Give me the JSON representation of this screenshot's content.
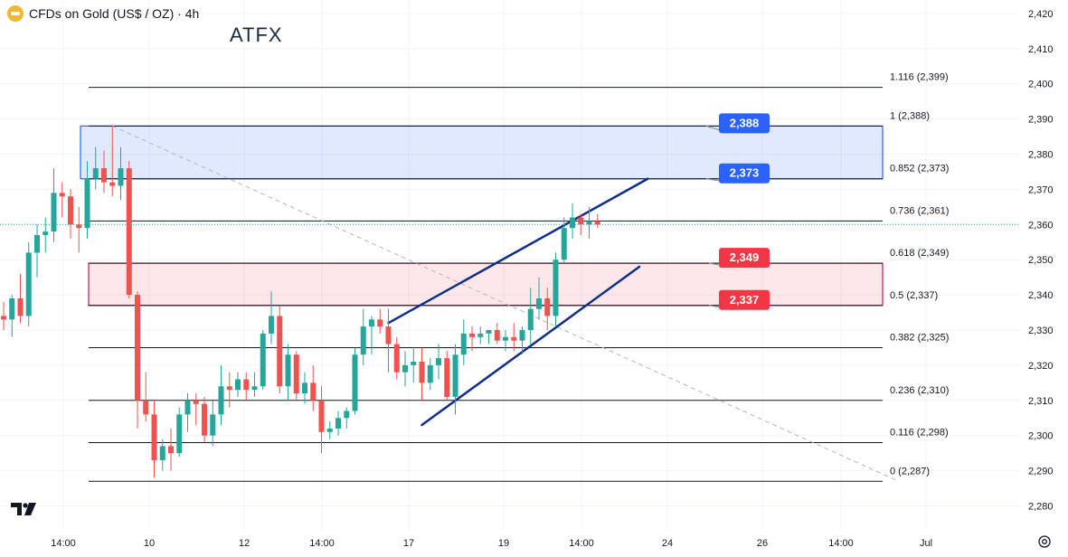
{
  "header": {
    "symbol_title": "CFDs on Gold (US$ / OZ) · 4h",
    "brand": "ATFX",
    "coin_icon": "gold-coin-icon"
  },
  "colors": {
    "up": "#26a69a",
    "down": "#ef5350",
    "blue_zone": "#2962ff",
    "red_zone": "#c2185b",
    "channel": "#0d2e8c",
    "price_line": "#26a69a"
  },
  "chart_data": {
    "type": "candlestick",
    "title": "CFDs on Gold (US$ / OZ) · 4h",
    "ylim": [
      2278,
      2424
    ],
    "y_ticks": [
      2280,
      2290,
      2300,
      2310,
      2320,
      2330,
      2340,
      2350,
      2360,
      2370,
      2380,
      2390,
      2400,
      2410,
      2420
    ],
    "y_tick_labels": [
      "2,280",
      "2,290",
      "2,300",
      "2,310",
      "2,320",
      "2,330",
      "2,340",
      "2,350",
      "2,360",
      "2,370",
      "2,380",
      "2,390",
      "2,400",
      "2,410",
      "2,420"
    ],
    "x_tick_labels": [
      "14:00",
      "10",
      "12",
      "14:00",
      "17",
      "19",
      "14:00",
      "24",
      "26",
      "14:00",
      "Jul"
    ],
    "current_price": 2360,
    "candles": [
      {
        "o": 2334,
        "h": 2338,
        "l": 2330,
        "c": 2333
      },
      {
        "o": 2333,
        "h": 2340,
        "l": 2328,
        "c": 2339
      },
      {
        "o": 2339,
        "h": 2346,
        "l": 2332,
        "c": 2334
      },
      {
        "o": 2334,
        "h": 2355,
        "l": 2331,
        "c": 2352
      },
      {
        "o": 2352,
        "h": 2360,
        "l": 2345,
        "c": 2357
      },
      {
        "o": 2357,
        "h": 2362,
        "l": 2352,
        "c": 2358
      },
      {
        "o": 2358,
        "h": 2376,
        "l": 2355,
        "c": 2369
      },
      {
        "o": 2369,
        "h": 2372,
        "l": 2362,
        "c": 2368
      },
      {
        "o": 2368,
        "h": 2370,
        "l": 2356,
        "c": 2360
      },
      {
        "o": 2360,
        "h": 2365,
        "l": 2352,
        "c": 2359
      },
      {
        "o": 2359,
        "h": 2378,
        "l": 2356,
        "c": 2373
      },
      {
        "o": 2373,
        "h": 2382,
        "l": 2370,
        "c": 2376
      },
      {
        "o": 2376,
        "h": 2381,
        "l": 2369,
        "c": 2372
      },
      {
        "o": 2372,
        "h": 2388,
        "l": 2368,
        "c": 2371
      },
      {
        "o": 2371,
        "h": 2382,
        "l": 2367,
        "c": 2376
      },
      {
        "o": 2376,
        "h": 2378,
        "l": 2339,
        "c": 2340
      },
      {
        "o": 2340,
        "h": 2341,
        "l": 2302,
        "c": 2310
      },
      {
        "o": 2310,
        "h": 2318,
        "l": 2304,
        "c": 2306
      },
      {
        "o": 2306,
        "h": 2310,
        "l": 2288,
        "c": 2293
      },
      {
        "o": 2293,
        "h": 2299,
        "l": 2290,
        "c": 2297
      },
      {
        "o": 2297,
        "h": 2302,
        "l": 2290,
        "c": 2295
      },
      {
        "o": 2295,
        "h": 2308,
        "l": 2294,
        "c": 2306
      },
      {
        "o": 2306,
        "h": 2312,
        "l": 2301,
        "c": 2310
      },
      {
        "o": 2310,
        "h": 2312,
        "l": 2303,
        "c": 2309
      },
      {
        "o": 2309,
        "h": 2311,
        "l": 2298,
        "c": 2300
      },
      {
        "o": 2300,
        "h": 2310,
        "l": 2297,
        "c": 2306
      },
      {
        "o": 2306,
        "h": 2320,
        "l": 2303,
        "c": 2314
      },
      {
        "o": 2314,
        "h": 2318,
        "l": 2308,
        "c": 2313
      },
      {
        "o": 2313,
        "h": 2318,
        "l": 2311,
        "c": 2316
      },
      {
        "o": 2316,
        "h": 2318,
        "l": 2310,
        "c": 2313
      },
      {
        "o": 2313,
        "h": 2318,
        "l": 2311,
        "c": 2314
      },
      {
        "o": 2314,
        "h": 2330,
        "l": 2313,
        "c": 2329
      },
      {
        "o": 2329,
        "h": 2341,
        "l": 2326,
        "c": 2334
      },
      {
        "o": 2334,
        "h": 2337,
        "l": 2312,
        "c": 2314
      },
      {
        "o": 2314,
        "h": 2326,
        "l": 2310,
        "c": 2323
      },
      {
        "o": 2323,
        "h": 2324,
        "l": 2310,
        "c": 2312
      },
      {
        "o": 2312,
        "h": 2318,
        "l": 2309,
        "c": 2315
      },
      {
        "o": 2315,
        "h": 2320,
        "l": 2307,
        "c": 2310
      },
      {
        "o": 2310,
        "h": 2314,
        "l": 2295,
        "c": 2301
      },
      {
        "o": 2301,
        "h": 2304,
        "l": 2299,
        "c": 2302
      },
      {
        "o": 2302,
        "h": 2307,
        "l": 2300,
        "c": 2305
      },
      {
        "o": 2305,
        "h": 2308,
        "l": 2302,
        "c": 2307
      },
      {
        "o": 2307,
        "h": 2325,
        "l": 2306,
        "c": 2323
      },
      {
        "o": 2323,
        "h": 2336,
        "l": 2320,
        "c": 2331
      },
      {
        "o": 2331,
        "h": 2334,
        "l": 2323,
        "c": 2333
      },
      {
        "o": 2333,
        "h": 2336,
        "l": 2329,
        "c": 2331
      },
      {
        "o": 2331,
        "h": 2336,
        "l": 2318,
        "c": 2326
      },
      {
        "o": 2326,
        "h": 2328,
        "l": 2316,
        "c": 2318
      },
      {
        "o": 2318,
        "h": 2324,
        "l": 2314,
        "c": 2320
      },
      {
        "o": 2320,
        "h": 2325,
        "l": 2315,
        "c": 2321
      },
      {
        "o": 2321,
        "h": 2325,
        "l": 2310,
        "c": 2315
      },
      {
        "o": 2315,
        "h": 2322,
        "l": 2313,
        "c": 2320
      },
      {
        "o": 2320,
        "h": 2326,
        "l": 2316,
        "c": 2322
      },
      {
        "o": 2322,
        "h": 2324,
        "l": 2310,
        "c": 2311
      },
      {
        "o": 2311,
        "h": 2326,
        "l": 2306,
        "c": 2323
      },
      {
        "o": 2323,
        "h": 2333,
        "l": 2320,
        "c": 2329
      },
      {
        "o": 2329,
        "h": 2331,
        "l": 2324,
        "c": 2328
      },
      {
        "o": 2328,
        "h": 2331,
        "l": 2326,
        "c": 2329
      },
      {
        "o": 2329,
        "h": 2330,
        "l": 2326,
        "c": 2330
      },
      {
        "o": 2330,
        "h": 2332,
        "l": 2326,
        "c": 2327
      },
      {
        "o": 2327,
        "h": 2330,
        "l": 2324,
        "c": 2328
      },
      {
        "o": 2328,
        "h": 2332,
        "l": 2324,
        "c": 2327
      },
      {
        "o": 2327,
        "h": 2331,
        "l": 2323,
        "c": 2330
      },
      {
        "o": 2330,
        "h": 2342,
        "l": 2326,
        "c": 2336
      },
      {
        "o": 2336,
        "h": 2345,
        "l": 2333,
        "c": 2339
      },
      {
        "o": 2339,
        "h": 2342,
        "l": 2330,
        "c": 2334
      },
      {
        "o": 2334,
        "h": 2352,
        "l": 2331,
        "c": 2350
      },
      {
        "o": 2350,
        "h": 2362,
        "l": 2349,
        "c": 2359
      },
      {
        "o": 2359,
        "h": 2366,
        "l": 2356,
        "c": 2362
      },
      {
        "o": 2362,
        "h": 2363,
        "l": 2357,
        "c": 2360
      },
      {
        "o": 2360,
        "h": 2365,
        "l": 2356,
        "c": 2361
      },
      {
        "o": 2361,
        "h": 2363,
        "l": 2359,
        "c": 2360
      }
    ],
    "fib_levels": [
      {
        "label": "1.116 (2,399)",
        "price": 2399
      },
      {
        "label": "1 (2,388)",
        "price": 2388
      },
      {
        "label": "0.852 (2,373)",
        "price": 2373
      },
      {
        "label": "0.736 (2,361)",
        "price": 2361
      },
      {
        "label": "0.618 (2,349)",
        "price": 2349
      },
      {
        "label": "0.5 (2,337)",
        "price": 2337
      },
      {
        "label": "0.382 (2,325)",
        "price": 2325
      },
      {
        "label": "0.236 (2,310)",
        "price": 2310
      },
      {
        "label": "0.116 (2,298)",
        "price": 2298
      },
      {
        "label": "0 (2,287)",
        "price": 2287
      }
    ],
    "zones": [
      {
        "name": "resistance",
        "top": 2388,
        "bottom": 2373,
        "color": "#2962ff"
      },
      {
        "name": "support",
        "top": 2349,
        "bottom": 2337,
        "color": "#c2185b"
      }
    ],
    "callouts": [
      {
        "label": "2,388",
        "price": 2388,
        "color": "#2962ff"
      },
      {
        "label": "2,373",
        "price": 2373,
        "color": "#2962ff"
      },
      {
        "label": "2,349",
        "price": 2349,
        "color": "#f23645"
      },
      {
        "label": "2,337",
        "price": 2337,
        "color": "#f23645"
      }
    ],
    "channel_lines": [
      {
        "from": {
          "candle": 46,
          "price": 2332
        },
        "to": {
          "candle": 77,
          "price": 2373
        }
      },
      {
        "from": {
          "candle": 50,
          "price": 2303
        },
        "to": {
          "candle": 76,
          "price": 2348
        }
      }
    ],
    "trend_line": {
      "from": {
        "candle": 13,
        "price": 2388
      },
      "to": {
        "candle": 107,
        "price": 2287
      }
    },
    "grid": true
  }
}
